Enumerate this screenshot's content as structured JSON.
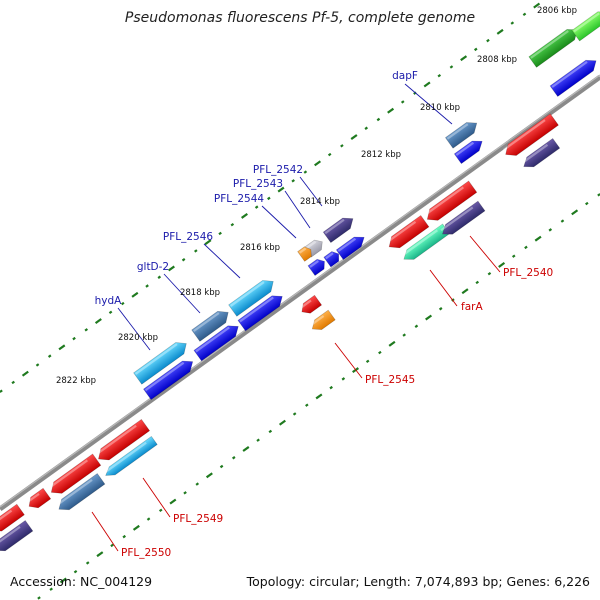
{
  "title": "Pseudomonas fluorescens Pf-5, complete genome",
  "footer": {
    "accession": "Accession: NC_004129",
    "summary": "Topology: circular; Length: 7,074,893 bp; Genes: 6,226"
  },
  "colors": {
    "backbone": "#8a8a8a",
    "tick": "#1f7a1f",
    "label_forward": "#1a1aaa",
    "label_reverse": "#cc0000"
  },
  "ticks": [
    {
      "kbp": 2806,
      "label": "2806 kbp"
    },
    {
      "kbp": 2808,
      "label": "2808 kbp"
    },
    {
      "kbp": 2810,
      "label": "2810 kbp"
    },
    {
      "kbp": 2812,
      "label": "2812 kbp"
    },
    {
      "kbp": 2814,
      "label": "2814 kbp"
    },
    {
      "kbp": 2816,
      "label": "2816 kbp"
    },
    {
      "kbp": 2818,
      "label": "2818 kbp"
    },
    {
      "kbp": 2820,
      "label": "2820 kbp"
    },
    {
      "kbp": 2822,
      "label": "2822 kbp"
    }
  ],
  "labels": [
    {
      "text": "dapF",
      "strand": "forward"
    },
    {
      "text": "PFL_2542",
      "strand": "forward"
    },
    {
      "text": "PFL_2543",
      "strand": "forward"
    },
    {
      "text": "PFL_2544",
      "strand": "forward"
    },
    {
      "text": "PFL_2546",
      "strand": "forward"
    },
    {
      "text": "gltD-2",
      "strand": "forward"
    },
    {
      "text": "hydA",
      "strand": "forward"
    },
    {
      "text": "PFL_2540",
      "strand": "reverse"
    },
    {
      "text": "farA",
      "strand": "reverse"
    },
    {
      "text": "PFL_2545",
      "strand": "reverse"
    },
    {
      "text": "PFL_2549",
      "strand": "reverse"
    },
    {
      "text": "PFL_2550",
      "strand": "reverse"
    }
  ]
}
